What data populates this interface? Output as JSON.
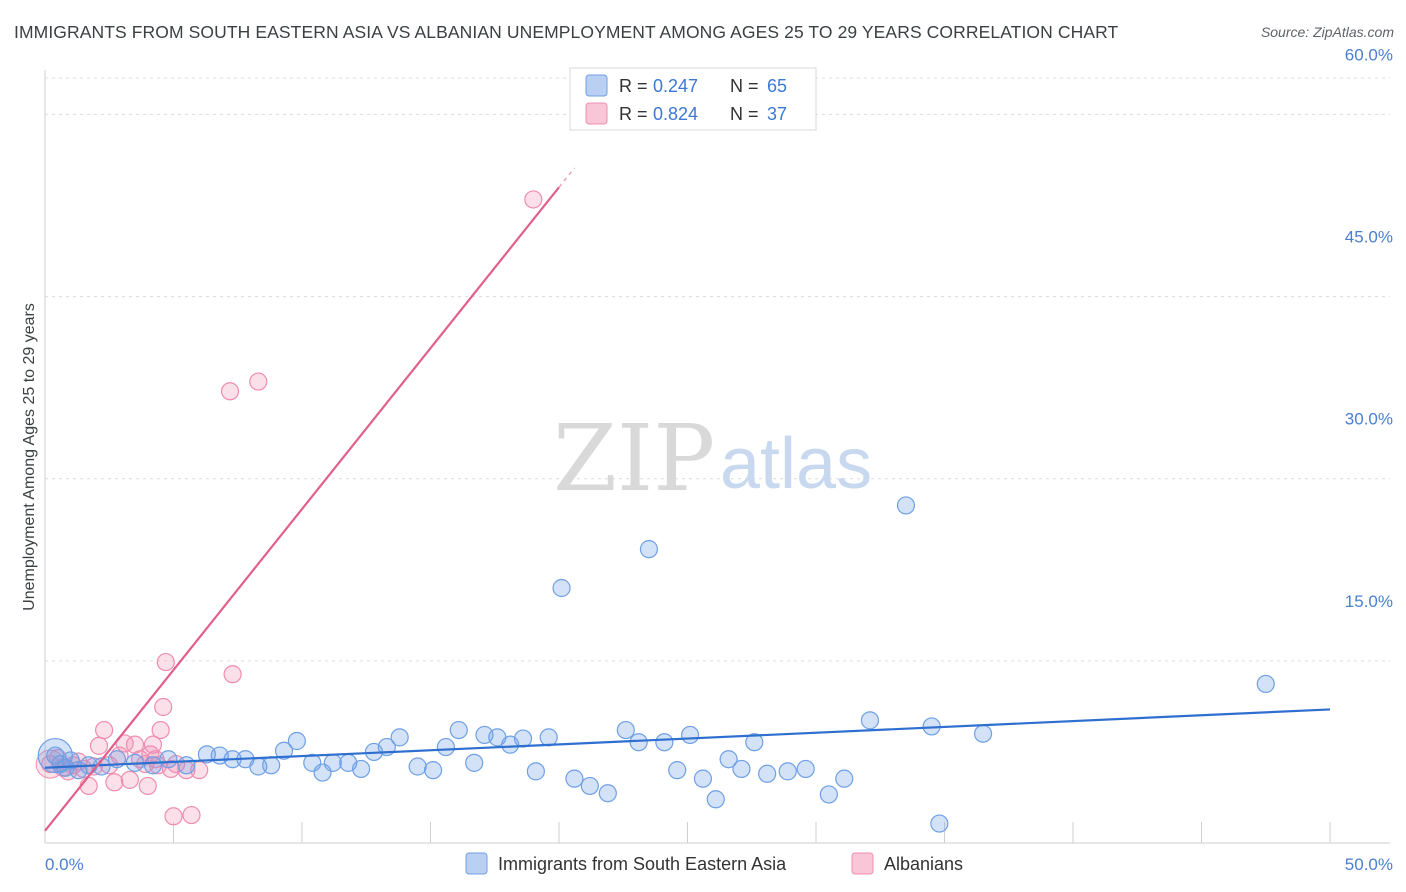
{
  "header": {
    "title": "IMMIGRANTS FROM SOUTH EASTERN ASIA VS ALBANIAN UNEMPLOYMENT AMONG AGES 25 TO 29 YEARS CORRELATION CHART",
    "source": "Source: ZipAtlas.com"
  },
  "watermark": {
    "zip": "ZIP",
    "atlas": "atlas"
  },
  "colors": {
    "blue": "#6ea0e6",
    "blue_line": "#2f6fcf",
    "pink": "#f08cb0",
    "pink_line": "#e0608a",
    "axis_text": "#4a7fd1"
  },
  "chart_data": {
    "type": "scatter",
    "title": "IMMIGRANTS FROM SOUTH EASTERN ASIA VS ALBANIAN UNEMPLOYMENT AMONG AGES 25 TO 29 YEARS CORRELATION CHART",
    "xlabel": "",
    "ylabel": "Unemployment Among Ages 25 to 29 years",
    "xlim": [
      0,
      50
    ],
    "ylim": [
      0,
      63
    ],
    "x_tick_labels": [
      "0.0%",
      "50.0%"
    ],
    "y_ticks": [
      15,
      30,
      45,
      60
    ],
    "y_tick_labels": [
      "15.0%",
      "30.0%",
      "45.0%",
      "60.0%"
    ],
    "grid": true,
    "legend": {
      "placement": "top-center",
      "entries": [
        {
          "r_label": "R =",
          "r_value": "0.247",
          "n_label": "N =",
          "n_value": "65"
        },
        {
          "r_label": "R =",
          "r_value": "0.824",
          "n_label": "N =",
          "n_value": "37"
        }
      ]
    },
    "series": [
      {
        "name": "Immigrants from South Eastern Asia",
        "color": "#6ea0e6",
        "trend": {
          "x": [
            0,
            50
          ],
          "y": [
            6.2,
            11.0
          ]
        },
        "points": [
          [
            0.4,
            7.2
          ],
          [
            0.6,
            6.5
          ],
          [
            0.8,
            6.2
          ],
          [
            1.0,
            6.8
          ],
          [
            1.3,
            6.0
          ],
          [
            1.7,
            6.4
          ],
          [
            2.2,
            6.3
          ],
          [
            2.8,
            6.9
          ],
          [
            3.5,
            6.6
          ],
          [
            4.2,
            6.4
          ],
          [
            4.8,
            6.9
          ],
          [
            5.5,
            6.4
          ],
          [
            6.3,
            7.3
          ],
          [
            6.8,
            7.2
          ],
          [
            7.3,
            6.9
          ],
          [
            7.8,
            6.9
          ],
          [
            8.3,
            6.3
          ],
          [
            8.8,
            6.4
          ],
          [
            9.3,
            7.6
          ],
          [
            9.8,
            8.4
          ],
          [
            10.4,
            6.6
          ],
          [
            10.8,
            5.8
          ],
          [
            11.2,
            6.6
          ],
          [
            11.8,
            6.6
          ],
          [
            12.3,
            6.1
          ],
          [
            12.8,
            7.5
          ],
          [
            13.3,
            7.9
          ],
          [
            13.8,
            8.7
          ],
          [
            14.5,
            6.3
          ],
          [
            15.1,
            6.0
          ],
          [
            15.6,
            7.9
          ],
          [
            16.1,
            9.3
          ],
          [
            16.7,
            6.6
          ],
          [
            17.1,
            8.9
          ],
          [
            17.6,
            8.7
          ],
          [
            18.1,
            8.1
          ],
          [
            18.6,
            8.6
          ],
          [
            19.1,
            5.9
          ],
          [
            19.6,
            8.7
          ],
          [
            20.1,
            21.0
          ],
          [
            20.6,
            5.3
          ],
          [
            21.2,
            4.7
          ],
          [
            21.9,
            4.1
          ],
          [
            22.6,
            9.3
          ],
          [
            23.1,
            8.3
          ],
          [
            23.5,
            24.2
          ],
          [
            24.1,
            8.3
          ],
          [
            24.6,
            6.0
          ],
          [
            25.1,
            8.9
          ],
          [
            25.6,
            5.3
          ],
          [
            26.1,
            3.6
          ],
          [
            26.6,
            6.9
          ],
          [
            27.1,
            6.1
          ],
          [
            27.6,
            8.3
          ],
          [
            28.1,
            5.7
          ],
          [
            28.9,
            5.9
          ],
          [
            29.6,
            6.1
          ],
          [
            30.5,
            4.0
          ],
          [
            31.1,
            5.3
          ],
          [
            32.1,
            10.1
          ],
          [
            33.5,
            27.8
          ],
          [
            34.5,
            9.6
          ],
          [
            34.8,
            1.6
          ],
          [
            36.5,
            9.0
          ],
          [
            47.5,
            13.1
          ]
        ]
      },
      {
        "name": "Albanians",
        "color": "#f08cb0",
        "trend": {
          "x": [
            0,
            20
          ],
          "y": [
            1.0,
            54.0
          ]
        },
        "points": [
          [
            0.2,
            6.5
          ],
          [
            0.5,
            7.0
          ],
          [
            0.7,
            6.2
          ],
          [
            0.9,
            5.9
          ],
          [
            1.1,
            6.4
          ],
          [
            1.3,
            6.7
          ],
          [
            1.5,
            6.1
          ],
          [
            1.7,
            4.7
          ],
          [
            1.9,
            6.3
          ],
          [
            2.1,
            8.0
          ],
          [
            2.3,
            9.3
          ],
          [
            2.5,
            6.4
          ],
          [
            2.7,
            5.0
          ],
          [
            2.9,
            7.2
          ],
          [
            3.1,
            8.2
          ],
          [
            3.3,
            5.2
          ],
          [
            3.5,
            8.1
          ],
          [
            3.7,
            6.9
          ],
          [
            3.9,
            6.5
          ],
          [
            4.0,
            4.7
          ],
          [
            4.1,
            7.3
          ],
          [
            4.2,
            8.1
          ],
          [
            4.3,
            6.9
          ],
          [
            4.4,
            6.4
          ],
          [
            4.5,
            9.3
          ],
          [
            4.6,
            11.2
          ],
          [
            4.7,
            14.9
          ],
          [
            4.9,
            6.1
          ],
          [
            5.0,
            2.2
          ],
          [
            5.1,
            6.5
          ],
          [
            5.5,
            6.0
          ],
          [
            5.7,
            2.3
          ],
          [
            6.0,
            6.0
          ],
          [
            7.2,
            37.2
          ],
          [
            7.3,
            13.9
          ],
          [
            8.3,
            38.0
          ],
          [
            19.0,
            53.0
          ]
        ]
      }
    ]
  },
  "bottom_legend": {
    "items": [
      "Immigrants from South Eastern Asia",
      "Albanians"
    ]
  }
}
